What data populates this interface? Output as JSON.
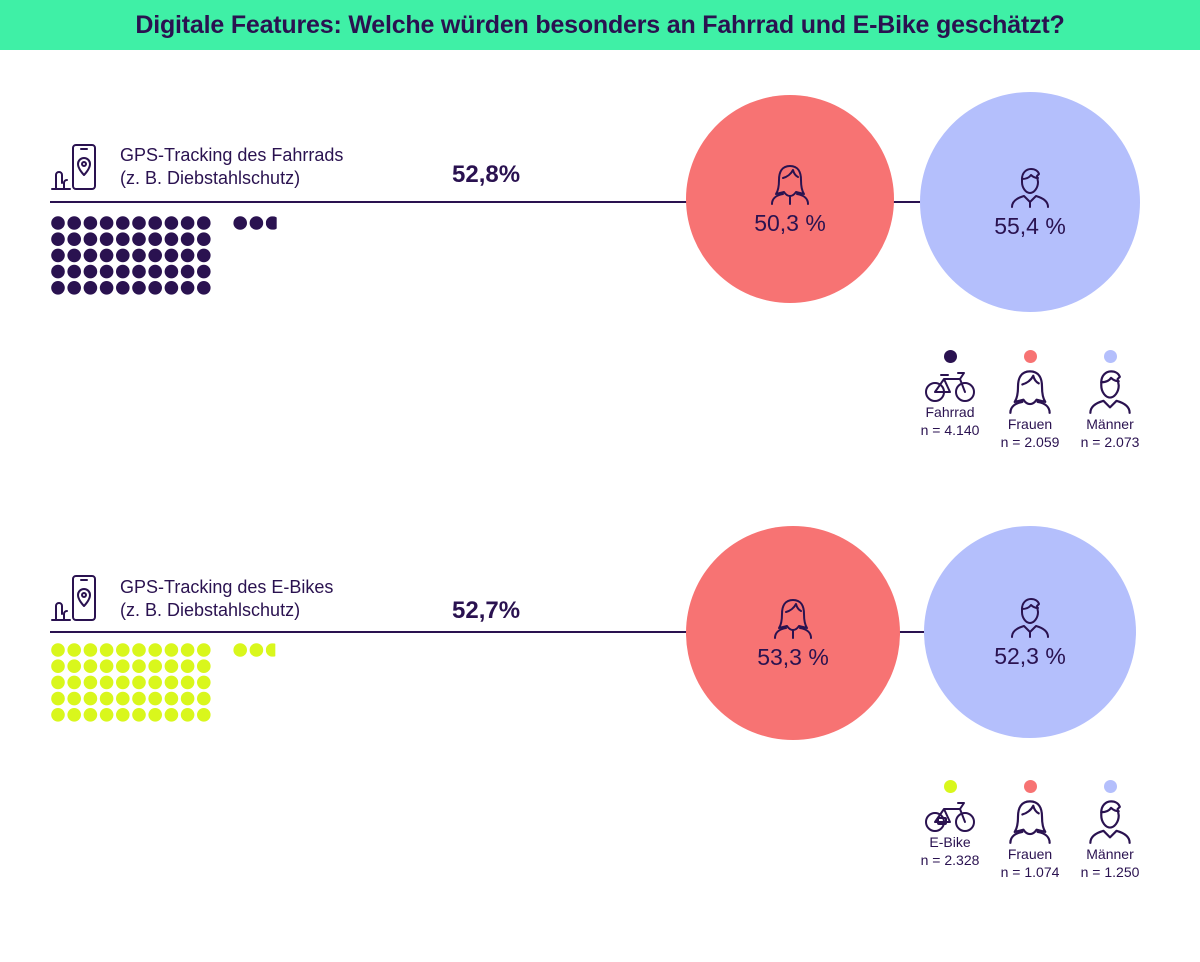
{
  "title": "Digitale Features: Welche würden besonders an Fahrrad und E-Bike geschätzt?",
  "colors": {
    "header_bg": "#3ff0a6",
    "ink": "#2a1250",
    "fahrrad": "#2a1250",
    "ebike": "#d9f71c",
    "frauen": "#f77373",
    "maenner": "#b4bffc"
  },
  "sections": [
    {
      "label_line1": "GPS-Tracking des Fahrrads",
      "label_line2": "(z. B. Diebstahlschutz)",
      "total": "52,8%",
      "frauen_value": "50,3 %",
      "maenner_value": "55,4 %",
      "icon": "smartphone-location-icon",
      "legend": [
        {
          "label": "Fahrrad",
          "n": "n = 4.140",
          "icon": "bicycle-icon"
        },
        {
          "label": "Frauen",
          "n": "n = 2.059",
          "icon": "woman-icon"
        },
        {
          "label": "Männer",
          "n": "n = 2.073",
          "icon": "man-icon"
        }
      ]
    },
    {
      "label_line1": "GPS-Tracking des E-Bikes",
      "label_line2": "(z. B. Diebstahlschutz)",
      "total": "52,7%",
      "frauen_value": "53,3 %",
      "maenner_value": "52,3 %",
      "icon": "smartphone-location-icon",
      "legend": [
        {
          "label": "E-Bike",
          "n": "n = 2.328",
          "icon": "ebike-icon"
        },
        {
          "label": "Frauen",
          "n": "n = 1.074",
          "icon": "woman-icon"
        },
        {
          "label": "Männer",
          "n": "n = 1.250",
          "icon": "man-icon"
        }
      ]
    }
  ],
  "chart_data": [
    {
      "type": "bar",
      "title": "GPS-Tracking des Fahrrads (z. B. Diebstahlschutz)",
      "categories": [
        "Fahrrad",
        "Frauen",
        "Männer"
      ],
      "values": [
        52.8,
        50.3,
        55.4
      ],
      "unit": "%",
      "n": [
        4140,
        2059,
        2073
      ],
      "waffle_percent": 52.8
    },
    {
      "type": "bar",
      "title": "GPS-Tracking des E-Bikes (z. B. Diebstahlschutz)",
      "categories": [
        "E-Bike",
        "Frauen",
        "Männer"
      ],
      "values": [
        52.7,
        53.3,
        52.3
      ],
      "unit": "%",
      "n": [
        2328,
        1074,
        1250
      ],
      "waffle_percent": 52.7
    }
  ]
}
